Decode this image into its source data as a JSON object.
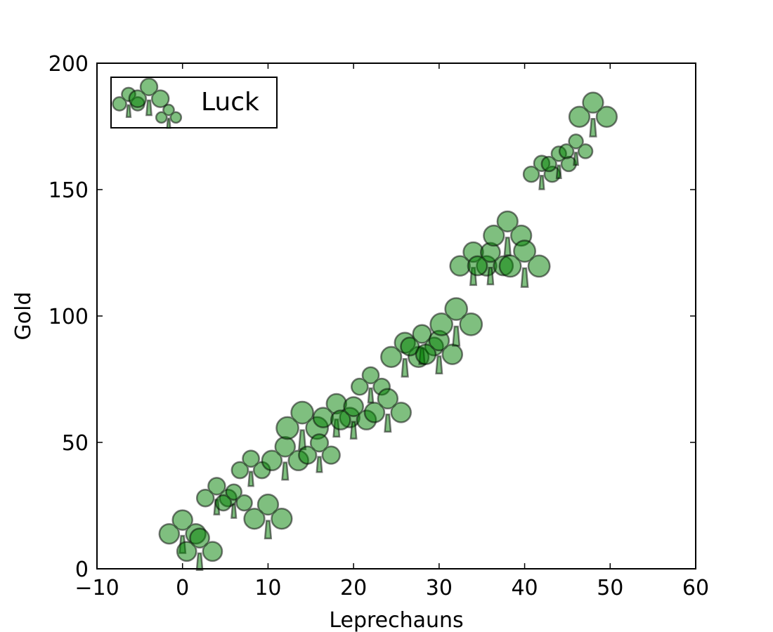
{
  "chart_data": {
    "type": "scatter",
    "xlabel": "Leprechauns",
    "ylabel": "Gold",
    "series": [
      {
        "name": "Luck",
        "color": "#008000",
        "marker": "clover",
        "x": [
          0,
          2,
          4,
          6,
          8,
          10,
          12,
          14,
          16,
          18,
          20,
          22,
          24,
          26,
          28,
          30,
          32,
          34,
          36,
          38,
          40,
          42,
          44,
          46,
          48
        ],
        "values": [
          15,
          8,
          29,
          27,
          40,
          21,
          44,
          57,
          46,
          61,
          60,
          73,
          63,
          85,
          89,
          86,
          98,
          121,
          121,
          133,
          121,
          157,
          161,
          166,
          180
        ],
        "sizes": [
          1225,
          1156,
          900,
          756,
          841,
          1296,
          1225,
          1521,
          961,
          1225,
          1156,
          841,
          1225,
          1296,
          1024,
          1225,
          1521,
          1225,
          1156,
          1296,
          1444,
          756,
          676,
          625,
          1296
        ]
      }
    ],
    "xlim": [
      -10,
      60
    ],
    "ylim": [
      0,
      200
    ],
    "xticks": [
      {
        "value": -10,
        "label": "−10"
      },
      0,
      10,
      20,
      30,
      40,
      50,
      60
    ],
    "yticks": [
      0,
      50,
      100,
      150,
      200
    ],
    "legend": "upper left"
  }
}
